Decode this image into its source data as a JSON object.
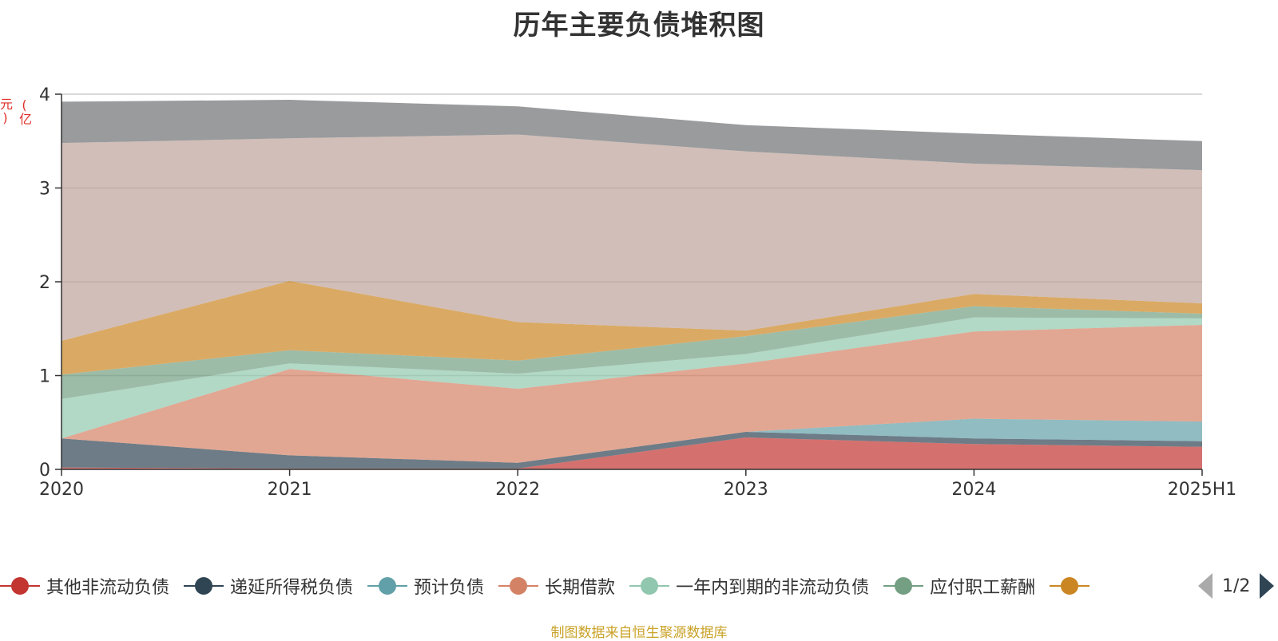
{
  "chart_data": {
    "type": "area",
    "stacked": true,
    "title": "历年主要负债堆积图",
    "unit_label": "(亿元)",
    "categories": [
      "2020",
      "2021",
      "2022",
      "2023",
      "2024",
      "2025H1"
    ],
    "ylim": [
      0,
      4
    ],
    "yticks": [
      0,
      1,
      2,
      3,
      4
    ],
    "grid": true,
    "series": [
      {
        "name": "其他非流动负债",
        "color": "#c23531",
        "values": [
          0.02,
          0.01,
          0.01,
          0.34,
          0.27,
          0.24
        ]
      },
      {
        "name": "递延所得税负债",
        "color": "#2f4554",
        "values": [
          0.31,
          0.14,
          0.06,
          0.06,
          0.06,
          0.06
        ]
      },
      {
        "name": "预计负债",
        "color": "#61a0a8",
        "values": [
          0.0,
          0.0,
          0.0,
          0.0,
          0.21,
          0.21
        ]
      },
      {
        "name": "长期借款",
        "color": "#d48265",
        "values": [
          0.0,
          0.92,
          0.79,
          0.73,
          0.93,
          1.03
        ]
      },
      {
        "name": "一年内到期的非流动负债",
        "color": "#91c7ae",
        "values": [
          0.42,
          0.06,
          0.16,
          0.1,
          0.15,
          0.07
        ]
      },
      {
        "name": "应付职工薪酬",
        "color": "#749f83",
        "values": [
          0.26,
          0.14,
          0.14,
          0.19,
          0.12,
          0.05
        ]
      },
      {
        "name": "",
        "color": "#ca8622",
        "values": [
          0.36,
          0.74,
          0.41,
          0.06,
          0.13,
          0.11
        ]
      },
      {
        "name": "",
        "color": "#bda29a",
        "values": [
          2.11,
          1.52,
          2.0,
          1.91,
          1.39,
          1.42
        ]
      },
      {
        "name": "",
        "color": "#6e7074",
        "values": [
          0.44,
          0.41,
          0.3,
          0.28,
          0.32,
          0.31
        ]
      }
    ]
  },
  "legend": {
    "page": "1/2"
  },
  "source": "制图数据来自恒生聚源数据库"
}
